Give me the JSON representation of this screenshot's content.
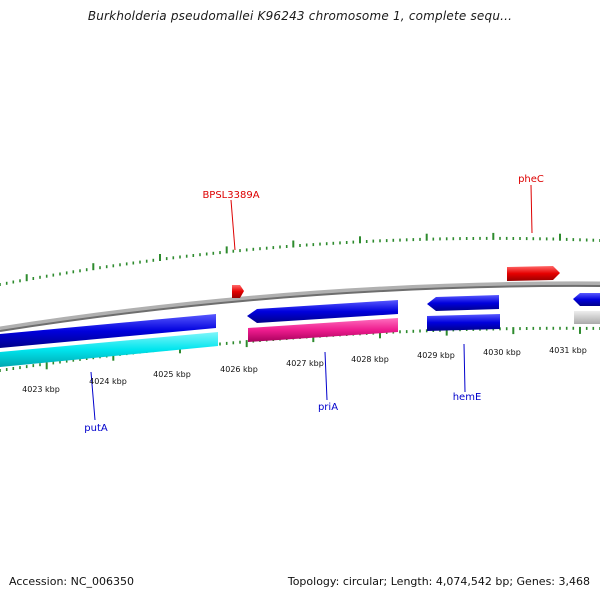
{
  "title": "Burkholderia pseudomallei K96243 chromosome 1, complete sequ...",
  "footer": {
    "accession": "Accession: NC_006350",
    "stats": "Topology: circular; Length: 4,074,542 bp; Genes: 3,468"
  },
  "colors": {
    "backbone": "#8c8c8c",
    "tick": "#2e8b2e",
    "forward_gene": "#e60000",
    "reverse_gene": "#0000cc",
    "cds_cyan": "#00e5ee",
    "cds_pink": "#ee1c8e",
    "cds_grey": "#c8c8c8",
    "label_red": "#dd0000",
    "label_blue": "#0000cc"
  },
  "scale_labels": [
    "4023 kbp",
    "4024 kbp",
    "4025 kbp",
    "4026 kbp",
    "4027 kbp",
    "4028 kbp",
    "4029 kbp",
    "4030 kbp",
    "4031 kbp"
  ],
  "gene_labels": {
    "top": [
      "BPSL3389A",
      "pheC"
    ],
    "bottom": [
      "putA",
      "priA",
      "hemE"
    ]
  }
}
